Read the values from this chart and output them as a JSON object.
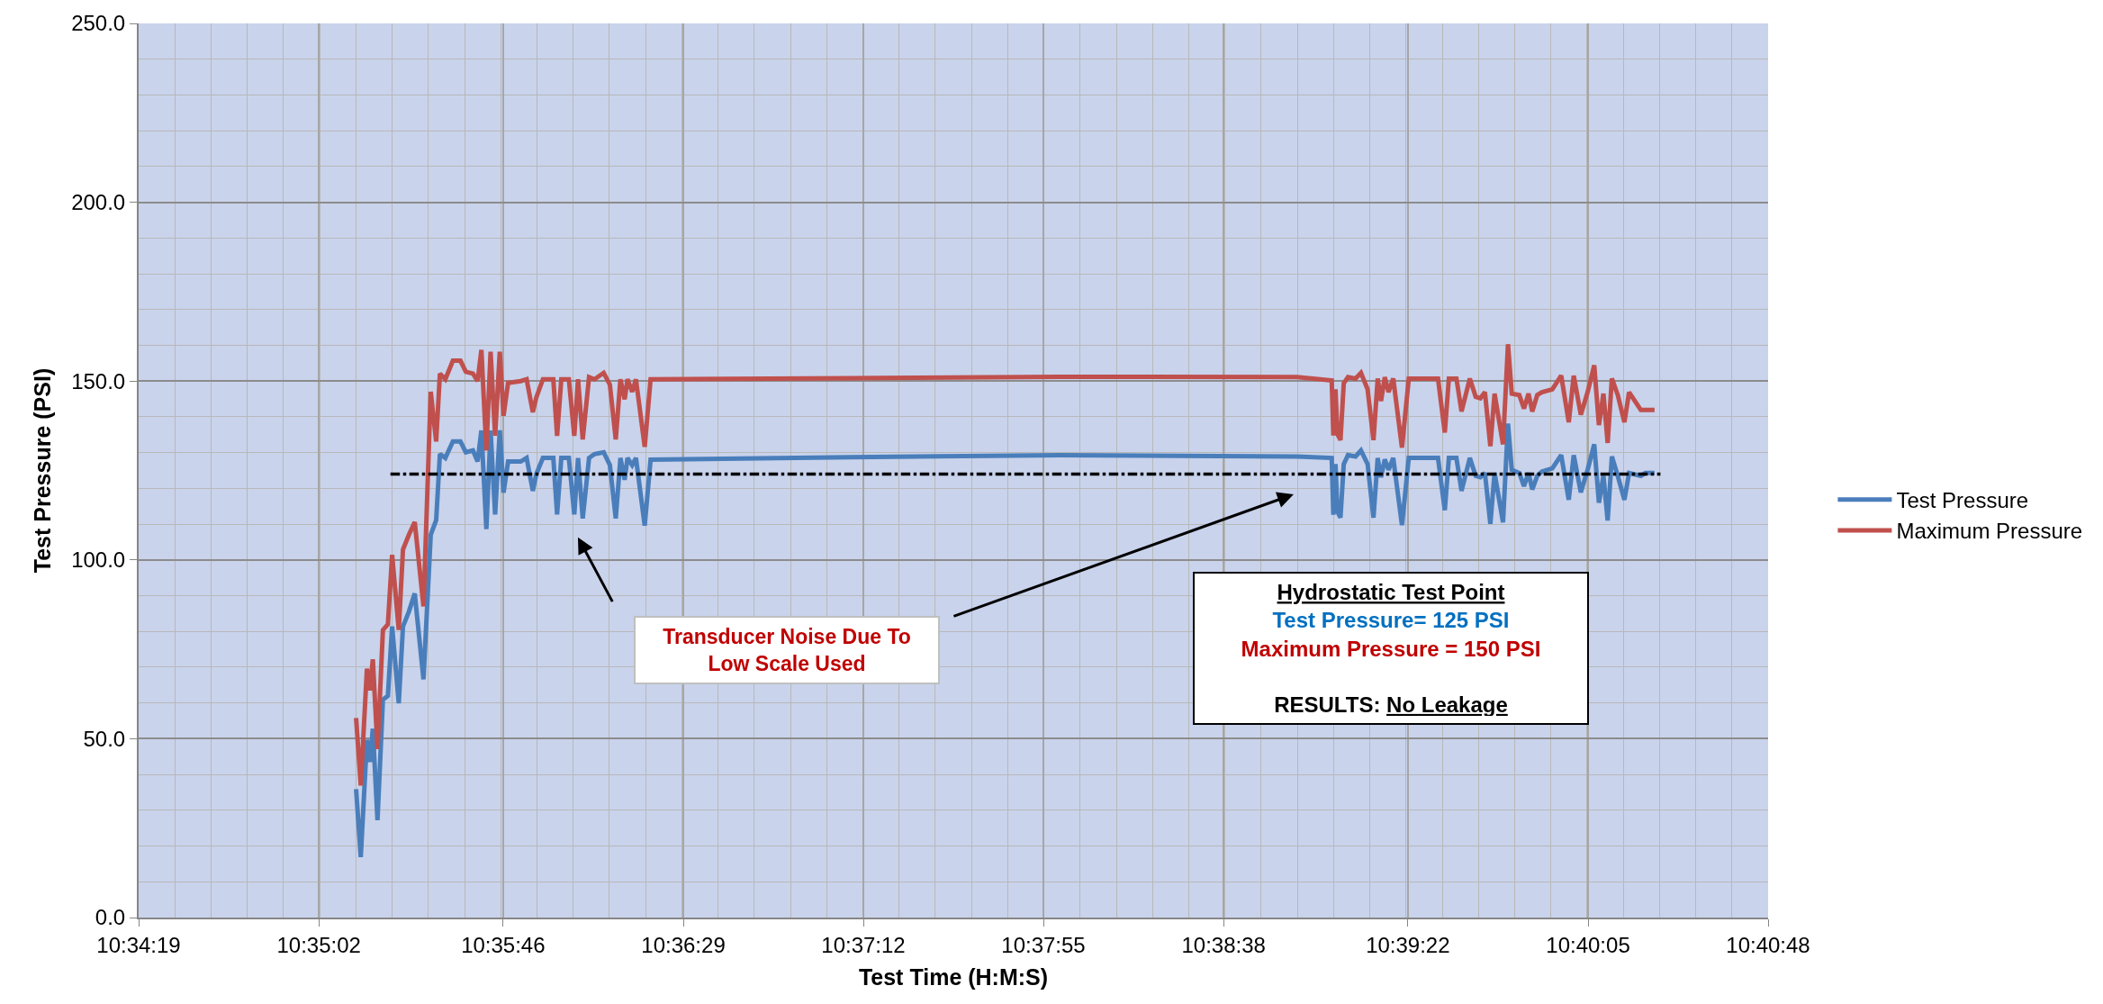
{
  "chart_data": {
    "type": "line",
    "xlabel": "Test Time (H:M:S)",
    "ylabel": "Test Pressure (PSI)",
    "x": [
      10.58636,
      10.58667,
      10.58708,
      10.58728,
      10.58747,
      10.58778,
      10.58814,
      10.58847,
      10.58875,
      10.58919,
      10.58947,
      10.58986,
      10.59025,
      10.59083,
      10.59131,
      10.59167,
      10.59192,
      10.59228,
      10.59278,
      10.59328,
      10.59364,
      10.59411,
      10.59442,
      10.59467,
      10.595,
      10.59528,
      10.59558,
      10.59589,
      10.59614,
      10.59644,
      10.59728,
      10.59767,
      10.59808,
      10.59831,
      10.59875,
      10.59944,
      10.59969,
      10.59997,
      10.60047,
      10.60083,
      10.60108,
      10.60139,
      10.60181,
      10.60217,
      10.60278,
      10.60319,
      10.60358,
      10.60389,
      10.60417,
      10.60436,
      10.60467,
      10.60492,
      10.6055,
      10.60589,
      10.61917,
      10.63306,
      10.64877,
      10.65106,
      10.65117,
      10.65131,
      10.65144,
      10.65164,
      10.65186,
      10.65214,
      10.65264,
      10.653,
      10.65344,
      10.65383,
      10.65411,
      10.65433,
      10.65458,
      10.65483,
      10.65514,
      10.65572,
      10.65617,
      10.65811,
      10.65856,
      10.65883,
      10.65933,
      10.65967,
      10.66022,
      10.66061,
      10.66092,
      10.66122,
      10.66158,
      10.66186,
      10.66242,
      10.66275,
      10.663,
      10.6635,
      10.66381,
      10.66411,
      10.66436,
      10.66469,
      10.665,
      10.66569,
      10.66628,
      10.66678,
      10.66711,
      10.66758,
      10.66803,
      10.66847,
      10.66878,
      10.66908,
      10.66936,
      10.66964,
      10.67003,
      10.67047,
      10.67078,
      10.67156,
      10.67186,
      10.67247
    ],
    "series": [
      {
        "name": "Test Pressure",
        "color": "#4a7ebb",
        "values": [
          35.9,
          16.9,
          49.7,
          43.5,
          52.8,
          27.2,
          60.9,
          62.0,
          81.4,
          59.9,
          81.4,
          85.5,
          90.6,
          66.6,
          107.0,
          111.1,
          129.6,
          128.5,
          133.1,
          133.1,
          130.1,
          130.6,
          127.5,
          136.2,
          108.6,
          136.2,
          112.7,
          136.2,
          118.8,
          127.5,
          127.5,
          128.5,
          119.3,
          124.0,
          128.5,
          128.5,
          112.7,
          128.5,
          128.5,
          112.7,
          128.5,
          111.6,
          128.5,
          129.6,
          130.1,
          126.5,
          111.6,
          128.5,
          122.4,
          128.5,
          126.5,
          128.5,
          109.6,
          128.0,
          128.7,
          129.3,
          128.9,
          128.5,
          112.6,
          126.8,
          113.5,
          111.8,
          126.8,
          129.3,
          128.9,
          130.6,
          126.8,
          111.8,
          128.5,
          123.1,
          128.1,
          125.2,
          128.5,
          109.7,
          128.5,
          128.5,
          113.9,
          128.5,
          128.5,
          119.3,
          128.5,
          123.5,
          123.1,
          124.3,
          110.1,
          124.3,
          110.5,
          138.1,
          125.2,
          124.3,
          120.6,
          124.3,
          119.7,
          123.5,
          124.7,
          125.6,
          129.3,
          116.8,
          129.3,
          118.9,
          125.2,
          132.3,
          116.0,
          123.5,
          111.0,
          128.9,
          123.5,
          116.8,
          124.3,
          123.5,
          124.3,
          124.3
        ]
      },
      {
        "name": "Maximum Pressure",
        "color": "#c0504d",
        "values": [
          55.8,
          36.9,
          69.6,
          63.5,
          72.2,
          47.1,
          80.4,
          82.0,
          101.4,
          80.4,
          102.9,
          107.0,
          110.6,
          87.0,
          147.0,
          133.1,
          152.1,
          150.5,
          155.7,
          155.7,
          152.6,
          152.1,
          150.0,
          158.7,
          130.6,
          158.2,
          134.7,
          158.2,
          140.3,
          149.5,
          150.0,
          150.5,
          141.3,
          145.4,
          150.5,
          150.5,
          134.7,
          150.5,
          150.5,
          134.7,
          150.5,
          133.7,
          151.1,
          150.5,
          152.3,
          149.0,
          133.7,
          150.5,
          144.9,
          150.5,
          147.0,
          150.5,
          131.6,
          150.5,
          150.8,
          151.2,
          151.1,
          150.2,
          134.8,
          147.7,
          135.2,
          133.5,
          149.4,
          151.1,
          150.7,
          152.3,
          147.7,
          133.5,
          150.7,
          144.4,
          151.1,
          146.9,
          150.7,
          131.4,
          150.7,
          150.7,
          135.6,
          150.7,
          150.7,
          141.5,
          150.7,
          145.6,
          145.2,
          146.9,
          131.8,
          146.5,
          132.3,
          160.3,
          146.5,
          146.1,
          142.3,
          146.5,
          141.5,
          146.1,
          146.9,
          147.7,
          151.5,
          138.5,
          151.5,
          140.6,
          146.9,
          154.4,
          137.7,
          146.5,
          132.7,
          150.7,
          146.1,
          138.5,
          146.9,
          141.9,
          141.9,
          141.9
        ]
      },
      {
        "color": "#000000",
        "line_style": "dashdot",
        "x": [
          10.58864,
          10.67286
        ],
        "values": [
          124,
          124
        ]
      }
    ],
    "xlim": [
      10.57194,
      10.68
    ],
    "xticks": [
      {
        "value": 10.57194,
        "label": "10:34:19"
      },
      {
        "value": 10.58389,
        "label": "10:35:02"
      },
      {
        "value": 10.59611,
        "label": "10:35:46"
      },
      {
        "value": 10.60806,
        "label": "10:36:29"
      },
      {
        "value": 10.62,
        "label": "10:37:12"
      },
      {
        "value": 10.63194,
        "label": "10:37:55"
      },
      {
        "value": 10.64389,
        "label": "10:38:38"
      },
      {
        "value": 10.65611,
        "label": "10:39:22"
      },
      {
        "value": 10.66806,
        "label": "10:40:05"
      },
      {
        "value": 10.68,
        "label": "10:40:48"
      }
    ],
    "ylim": [
      0,
      250
    ],
    "yticks": [
      {
        "value": 0,
        "label": "0.0"
      },
      {
        "value": 50,
        "label": "50.0"
      },
      {
        "value": 100,
        "label": "100.0"
      },
      {
        "value": 150,
        "label": "150.0"
      },
      {
        "value": 200,
        "label": "200.0"
      },
      {
        "value": 250,
        "label": "250.0"
      }
    ],
    "grid": true,
    "legend": "right",
    "annotations": [
      "Transducer Noise Due To Low Scale Used",
      "Hydrostatic Test Point",
      "Test Pressure= 125 PSI",
      "Maximum Pressure = 150 PSI",
      "RESULTS: No Leakage"
    ]
  }
}
